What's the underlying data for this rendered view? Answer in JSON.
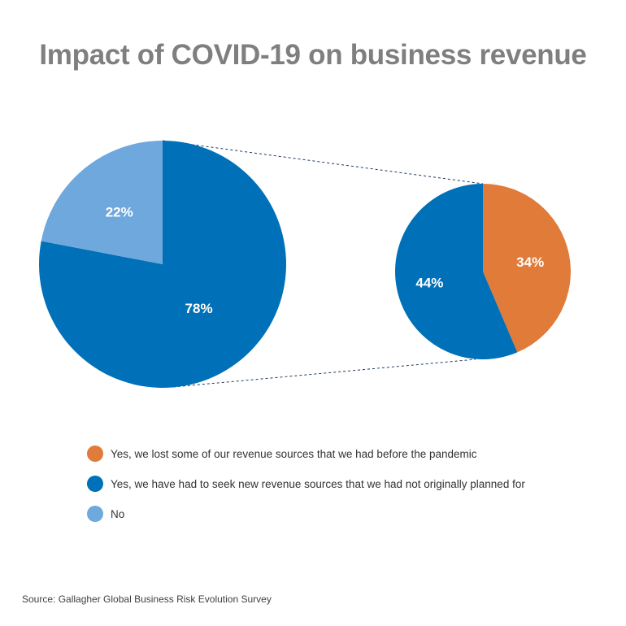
{
  "title": "Impact of COVID-19 on business revenue",
  "source": "Source: Gallagher Global Business Risk Evolution Survey",
  "colors": {
    "orange": "#e07b39",
    "blue": "#0070b8",
    "light_blue": "#6fa8dc",
    "title_gray": "#7f7f7f"
  },
  "legend": [
    {
      "label": "Yes, we lost some of our revenue sources that we had before the pandemic",
      "color": "#e07b39"
    },
    {
      "label": "Yes, we have had to seek new revenue sources that we had not originally planned for",
      "color": "#0070b8"
    },
    {
      "label": "No",
      "color": "#6fa8dc"
    }
  ],
  "chart_data": [
    {
      "type": "pie",
      "title": "",
      "slices": [
        {
          "label": "78%",
          "value": 78,
          "color": "#0070b8"
        },
        {
          "label": "22%",
          "value": 22,
          "color": "#6fa8dc"
        }
      ]
    },
    {
      "type": "pie",
      "title": "",
      "slices": [
        {
          "label": "34%",
          "value": 34,
          "color": "#e07b39"
        },
        {
          "label": "44%",
          "value": 44,
          "color": "#0070b8"
        }
      ]
    }
  ]
}
